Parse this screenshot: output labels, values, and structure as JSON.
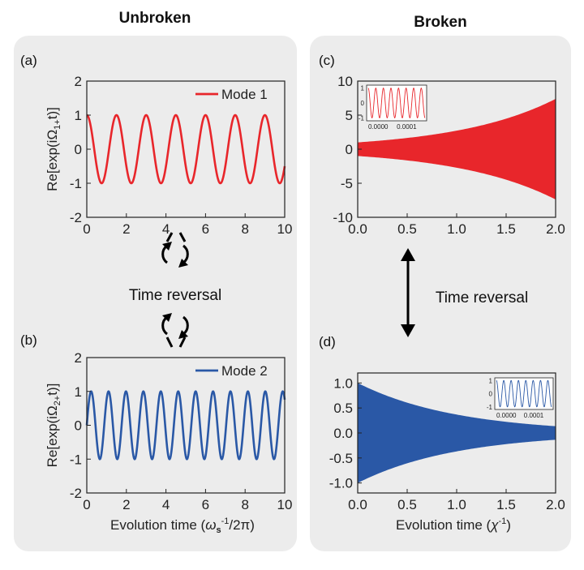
{
  "headers": {
    "left": "Unbroken",
    "right": "Broken"
  },
  "time_reversal_label": "Time reversal",
  "colors": {
    "panel_bg": "#ececec",
    "red": "#e8262b",
    "blue": "#2a58a6",
    "axis": "#222222",
    "arrow": "#000000"
  },
  "icons": {
    "left_arrows": "circular-arrows-icon",
    "right_arrow": "double-headed-arrow-icon"
  },
  "chart_data": [
    {
      "panel": "(a)",
      "type": "line",
      "series": [
        {
          "name": "Mode 1",
          "function": "cos",
          "amplitude": 1,
          "period": 1.5,
          "phase": 0,
          "color": "#e8262b"
        }
      ],
      "xlim": [
        0,
        10
      ],
      "ylim": [
        -2,
        2
      ],
      "xticks": [
        0,
        2,
        4,
        6,
        8,
        10
      ],
      "yticks": [
        -2,
        -1,
        0,
        1,
        2
      ],
      "xticklabels": [
        "0",
        "2",
        "4",
        "6",
        "8",
        "10"
      ],
      "yticklabels": [
        "-2",
        "-1",
        "0",
        "1",
        "2"
      ],
      "xlabel": "",
      "ylabel": "Re[exp(iΩ1+t)]",
      "legend": "top-right"
    },
    {
      "panel": "(b)",
      "type": "line",
      "series": [
        {
          "name": "Mode 2",
          "function": "sin",
          "amplitude": 1,
          "period": 0.88,
          "phase": 0,
          "color": "#2a58a6"
        }
      ],
      "xlim": [
        0,
        10
      ],
      "ylim": [
        -2,
        2
      ],
      "xticks": [
        0,
        2,
        4,
        6,
        8,
        10
      ],
      "yticks": [
        -2,
        -1,
        0,
        1,
        2
      ],
      "xticklabels": [
        "0",
        "2",
        "4",
        "6",
        "8",
        "10"
      ],
      "yticklabels": [
        "-2",
        "-1",
        "0",
        "1",
        "2"
      ],
      "xlabel": "Evolution time (ωs-1/2π)",
      "ylabel": "Re[exp(iΩ2+t)]",
      "legend": "top-right"
    },
    {
      "panel": "(c)",
      "type": "area",
      "series": [
        {
          "envelope": "growth",
          "envelope_x": [
            0,
            0.5,
            1.0,
            1.5,
            2.0
          ],
          "envelope_y": [
            1.0,
            1.65,
            2.7,
            4.5,
            7.4
          ],
          "color": "#e8262b"
        }
      ],
      "xlim": [
        0,
        2
      ],
      "ylim": [
        -10,
        10
      ],
      "xticks": [
        0,
        0.5,
        1,
        1.5,
        2
      ],
      "yticks": [
        -10,
        -5,
        0,
        5,
        10
      ],
      "xticklabels": [
        "0.0",
        "0.5",
        "1.0",
        "1.5",
        "2.0"
      ],
      "yticklabels": [
        "-10",
        "-5",
        "0",
        "5",
        "10"
      ],
      "xlabel": "",
      "ylabel": "",
      "inset": {
        "type": "line",
        "xlim": [
          0,
          0.00015
        ],
        "ylim": [
          -1.2,
          1.2
        ],
        "xticklabels": [
          "0.0000",
          "0.0001"
        ],
        "yticklabels": [
          "1",
          "0",
          "-1"
        ],
        "cycles": 7.5,
        "color": "#e8262b"
      }
    },
    {
      "panel": "(d)",
      "type": "area",
      "series": [
        {
          "envelope": "decay",
          "envelope_x": [
            0,
            0.5,
            1.0,
            1.5,
            2.0
          ],
          "envelope_y": [
            1.0,
            0.61,
            0.37,
            0.22,
            0.135
          ],
          "color": "#2a58a6"
        }
      ],
      "xlim": [
        0,
        2
      ],
      "ylim": [
        -1.2,
        1.2
      ],
      "xticks": [
        0,
        0.5,
        1,
        1.5,
        2
      ],
      "yticks": [
        -1,
        -0.5,
        0,
        0.5,
        1
      ],
      "xticklabels": [
        "0.0",
        "0.5",
        "1.0",
        "1.5",
        "2.0"
      ],
      "yticklabels": [
        "-1.0",
        "-0.5",
        "0.0",
        "0.5",
        "1.0"
      ],
      "xlabel": "Evolution time (χ-1)",
      "ylabel": "",
      "inset": {
        "type": "line",
        "xlim": [
          0,
          0.00015
        ],
        "ylim": [
          -1.2,
          1.2
        ],
        "xticklabels": [
          "0.0000",
          "0.0001"
        ],
        "yticklabels": [
          "1",
          "0",
          "-1"
        ],
        "cycles": 7.5,
        "color": "#2a58a6"
      }
    }
  ]
}
